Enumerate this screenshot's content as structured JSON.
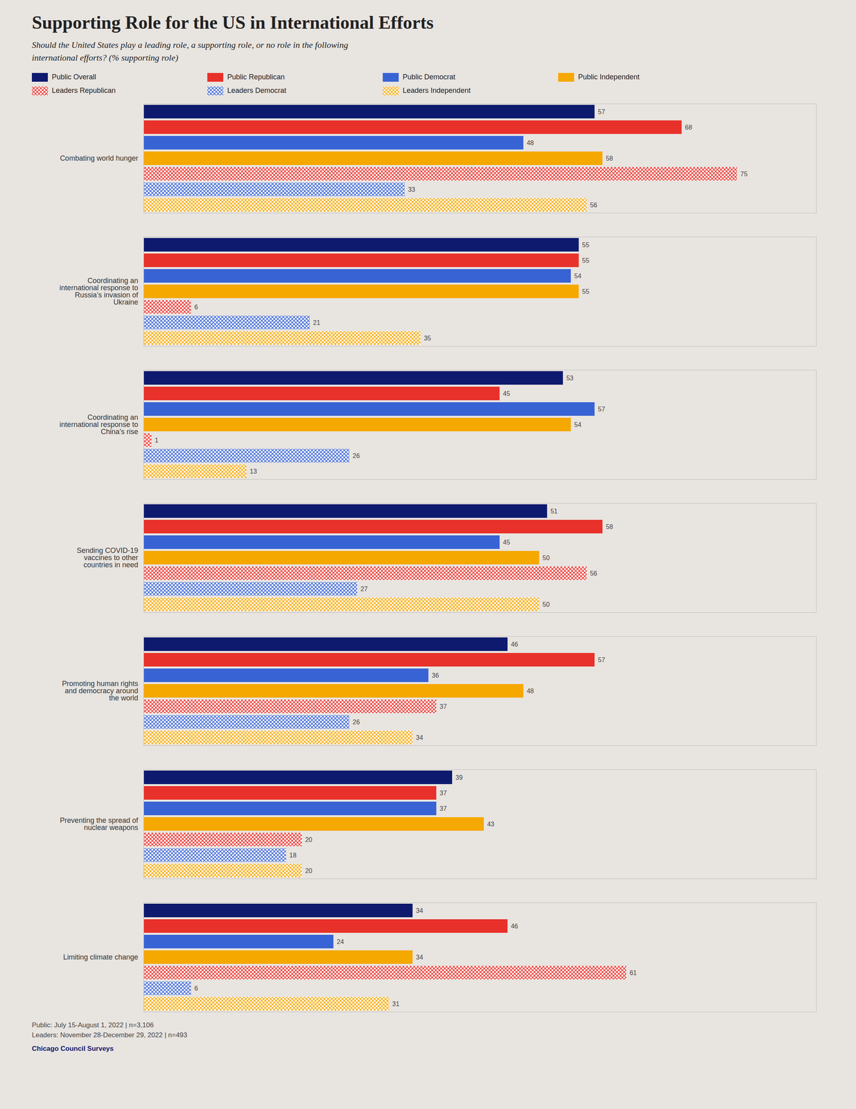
{
  "chart_data": {
    "type": "bar",
    "orientation": "horizontal",
    "title": "Supporting Role for the US in International Efforts",
    "subtitle": "Should the United States play a leading role, a supporting role, or no role in the following\ninternational efforts? (% supporting role)",
    "categories": [
      "Combating world hunger",
      "Coordinating an\ninternational response to\nRussia’s invasion of\nUkraine",
      "Coordinating an\ninternational response to\nChina’s rise",
      "Sending COVID-19\nvaccines to other\ncountries in need",
      "Promoting human rights\nand democracy around\nthe world",
      "Preventing the spread of\nnuclear weapons",
      "Limiting climate change"
    ],
    "series": [
      {
        "name": "Public Overall",
        "color": "#0d1a6e",
        "line_style": "solid",
        "values": [
          57,
          55,
          53,
          51,
          46,
          39,
          34
        ]
      },
      {
        "name": "Public Republican",
        "color": "#e8312a",
        "line_style": "solid",
        "values": [
          68,
          55,
          45,
          58,
          57,
          37,
          46
        ]
      },
      {
        "name": "Public Democrat",
        "color": "#3863d4",
        "line_style": "solid",
        "values": [
          48,
          54,
          57,
          45,
          36,
          37,
          24
        ]
      },
      {
        "name": "Public Independent",
        "color": "#f5a800",
        "line_style": "solid",
        "values": [
          58,
          55,
          54,
          50,
          48,
          43,
          34
        ]
      },
      {
        "name": "Leaders Republican",
        "color": "#e8312a",
        "line_style": "hatched",
        "values": [
          75,
          6,
          1,
          56,
          37,
          20,
          61
        ]
      },
      {
        "name": "Leaders Democrat",
        "color": "#3863d4",
        "line_style": "hatched",
        "values": [
          33,
          21,
          26,
          27,
          26,
          18,
          6
        ]
      },
      {
        "name": "Leaders Independent",
        "color": "#f5a800",
        "line_style": "hatched",
        "values": [
          56,
          35,
          13,
          50,
          34,
          20,
          31
        ]
      }
    ],
    "xlim": [
      0,
      85
    ],
    "tick_labels": "y",
    "data_labels": true,
    "grid": false,
    "legend": "top",
    "annotations": [
      "Public: July 15-August 1, 2022 | n=3,106\nLeaders: November 28-December 29, 2022 | n=493",
      "Chicago Council Surveys"
    ]
  }
}
